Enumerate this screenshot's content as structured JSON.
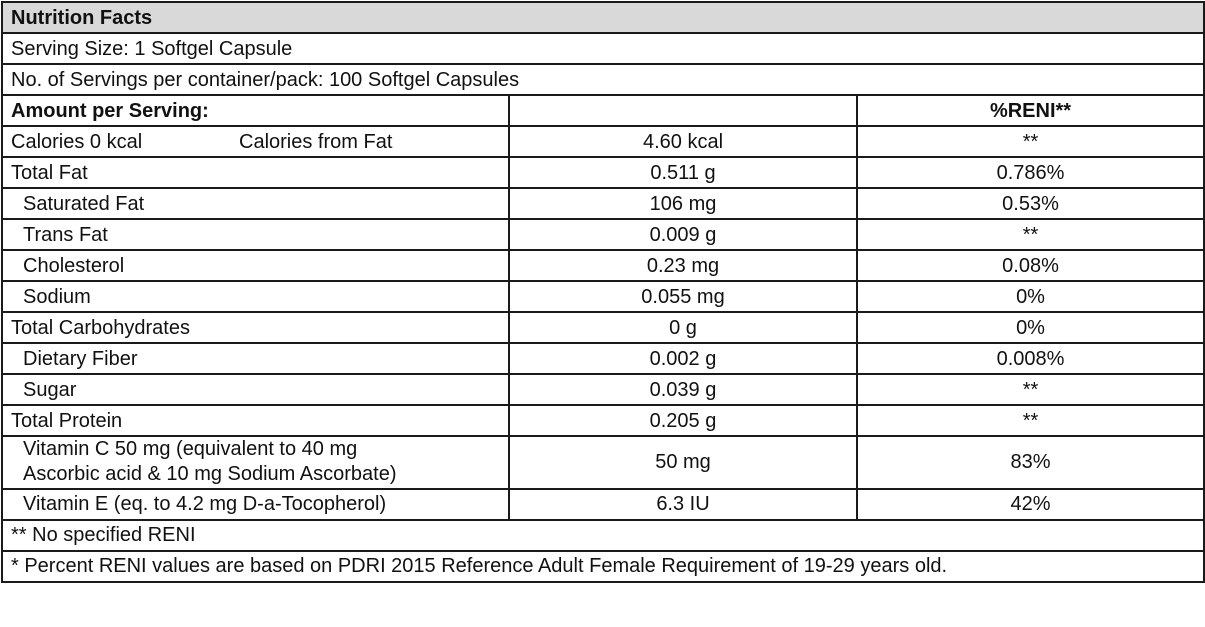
{
  "title": "Nutrition Facts",
  "serving_size": "Serving Size: 1 Softgel Capsule",
  "servings_per_container": "No. of Servings per container/pack: 100 Softgel Capsules",
  "header": {
    "amount_per_serving": "Amount per Serving:",
    "reni_header": "%RENI**"
  },
  "calories": {
    "label": "Calories 0 kcal",
    "from_fat_label": "Calories from Fat",
    "value": "4.60 kcal",
    "reni": "**"
  },
  "rows": [
    {
      "name": "Total Fat",
      "amount": "0.511 g",
      "reni": "0.786%"
    },
    {
      "name": "Saturated Fat",
      "amount": "106 mg",
      "reni": "0.53%"
    },
    {
      "name": "Trans Fat",
      "amount": "0.009 g",
      "reni": "**"
    },
    {
      "name": "Cholesterol",
      "amount": "0.23 mg",
      "reni": "0.08%"
    },
    {
      "name": "Sodium",
      "amount": "0.055 mg",
      "reni": "0%"
    },
    {
      "name": "Total Carbohydrates",
      "amount": "0 g",
      "reni": "0%"
    },
    {
      "name": "Dietary Fiber",
      "amount": "0.002 g",
      "reni": "0.008%"
    },
    {
      "name": "Sugar",
      "amount": "0.039 g",
      "reni": "**"
    },
    {
      "name": "Total Protein",
      "amount": "0.205 g",
      "reni": "**"
    }
  ],
  "vitamin_c": {
    "line1": "Vitamin C 50 mg (equivalent to 40 mg",
    "line2": "Ascorbic acid & 10 mg Sodium Ascorbate)",
    "amount": "50 mg",
    "reni": "83%"
  },
  "vitamin_e": {
    "name": "Vitamin E (eq. to 4.2 mg D-a-Tocopherol)",
    "amount": "6.3 IU",
    "reni": "42%"
  },
  "footnotes": {
    "no_reni": "**  No specified RENI",
    "percent_note": "*  Percent RENI values are based on PDRI 2015 Reference Adult Female Requirement of 19-29 years old."
  },
  "colors": {
    "title_background": "#d9d9d9",
    "border": "#1a1a1a"
  }
}
